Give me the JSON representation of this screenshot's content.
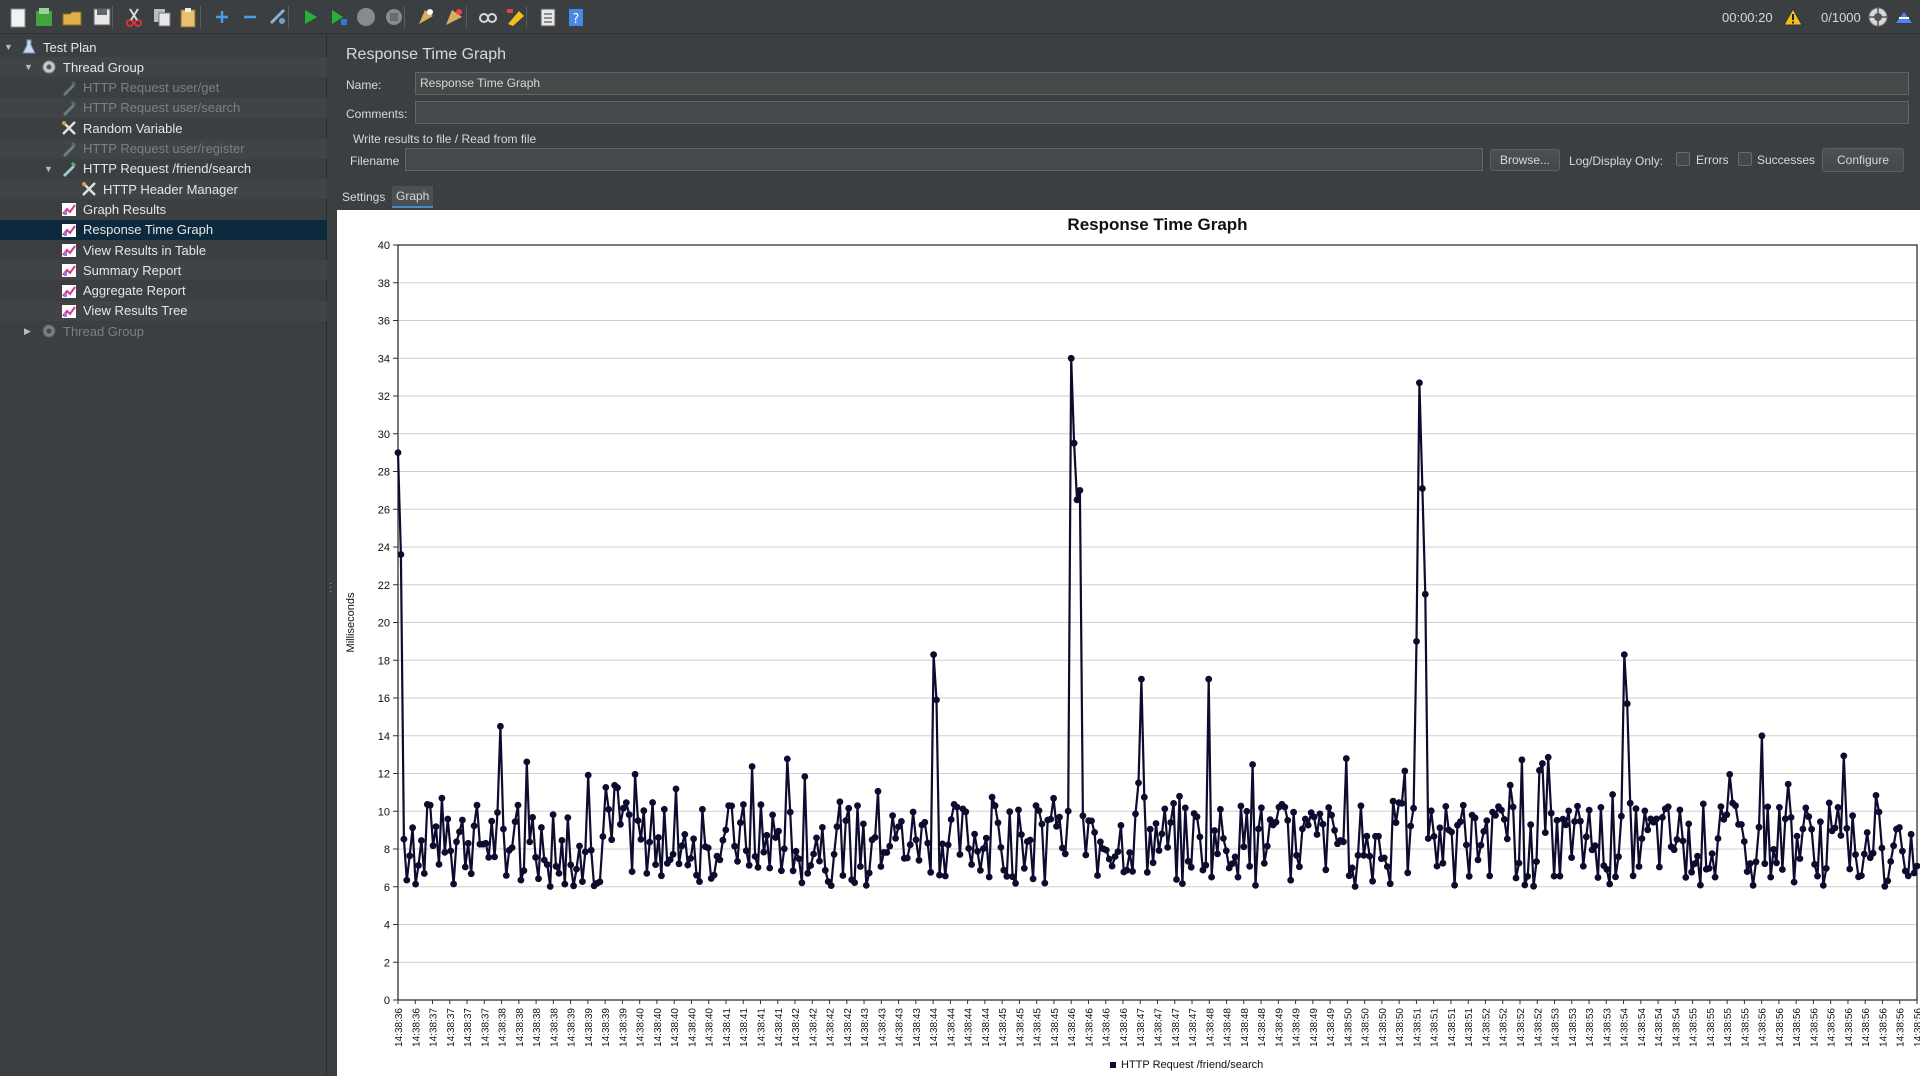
{
  "toolbar": {
    "buttons": [
      {
        "name": "new-icon",
        "color": "#f2f2f2"
      },
      {
        "name": "templates-icon",
        "color": "#3fa53f"
      },
      {
        "name": "open-icon",
        "color": "#e0b04a"
      },
      {
        "name": "save-icon",
        "color": "#e8e8e8"
      },
      {
        "name": "cut-icon",
        "color": "#d8d8d8"
      },
      {
        "name": "copy-icon",
        "color": "#e8e8e8"
      },
      {
        "name": "paste-icon",
        "color": "#e8c070"
      },
      {
        "name": "expand-icon",
        "color": "#4a9be8"
      },
      {
        "name": "collapse-icon",
        "color": "#4a9be8"
      },
      {
        "name": "toggle-icon",
        "color": "#8fb0d0"
      },
      {
        "name": "start-icon",
        "color": "#27b03a"
      },
      {
        "name": "start-no-pause-icon",
        "color": "#27b03a"
      },
      {
        "name": "stop-icon",
        "color": "#8a8a8a"
      },
      {
        "name": "shutdown-icon",
        "color": "#8a8a8a"
      },
      {
        "name": "clear-icon",
        "color": "#d8b060"
      },
      {
        "name": "clear-all-icon",
        "color": "#d8b060"
      },
      {
        "name": "search-icon",
        "color": "#d8d8d8"
      },
      {
        "name": "reset-search-icon",
        "color": "#f0c020"
      },
      {
        "name": "function-helper-icon",
        "color": "#e8e8e8"
      },
      {
        "name": "help-icon",
        "color": "#4a88e8"
      }
    ],
    "elapsed_time": "00:00:20",
    "thread_count": "0/1000"
  },
  "tree": [
    {
      "label": "Test Plan",
      "icon": "test-plan-icon",
      "arrow": "down",
      "indent": 0,
      "state": "normal"
    },
    {
      "label": "Thread Group",
      "icon": "gear-icon",
      "arrow": "down",
      "indent": 1,
      "state": "normal"
    },
    {
      "label": "HTTP Request user/get",
      "icon": "pipette-icon",
      "arrow": "none",
      "indent": 2,
      "state": "disabled"
    },
    {
      "label": "HTTP Request user/search",
      "icon": "pipette-icon",
      "arrow": "none",
      "indent": 2,
      "state": "disabled"
    },
    {
      "label": "Random Variable",
      "icon": "wrench-icon",
      "arrow": "none",
      "indent": 2,
      "state": "normal"
    },
    {
      "label": "HTTP Request user/register",
      "icon": "pipette-icon",
      "arrow": "none",
      "indent": 2,
      "state": "disabled"
    },
    {
      "label": "HTTP Request /friend/search",
      "icon": "pipette-icon",
      "arrow": "down",
      "indent": 2,
      "state": "normal"
    },
    {
      "label": "HTTP Header Manager",
      "icon": "wrench-icon",
      "arrow": "none",
      "indent": 3,
      "state": "normal"
    },
    {
      "label": "Graph Results",
      "icon": "graph-icon",
      "arrow": "none",
      "indent": 2,
      "state": "normal"
    },
    {
      "label": "Response Time Graph",
      "icon": "graph-icon",
      "arrow": "none",
      "indent": 2,
      "state": "selected"
    },
    {
      "label": "View Results in Table",
      "icon": "graph-icon",
      "arrow": "none",
      "indent": 2,
      "state": "normal"
    },
    {
      "label": "Summary Report",
      "icon": "graph-icon",
      "arrow": "none",
      "indent": 2,
      "state": "normal"
    },
    {
      "label": "Aggregate Report",
      "icon": "graph-icon",
      "arrow": "none",
      "indent": 2,
      "state": "normal"
    },
    {
      "label": "View Results Tree",
      "icon": "graph-icon",
      "arrow": "none",
      "indent": 2,
      "state": "normal"
    },
    {
      "label": "Thread Group",
      "icon": "gear-icon",
      "arrow": "right",
      "indent": 1,
      "state": "disabled"
    }
  ],
  "panel": {
    "title": "Response Time Graph",
    "name_label": "Name:",
    "name_value": "Response Time Graph",
    "comments_label": "Comments:",
    "comments_value": "",
    "file_group_title": "Write results to file / Read from file",
    "filename_label": "Filename",
    "filename_value": "",
    "browse_label": "Browse...",
    "log_display_label": "Log/Display Only:",
    "errors_label": "Errors",
    "successes_label": "Successes",
    "configure_label": "Configure",
    "tabs": [
      "Settings",
      "Graph"
    ],
    "active_tab": "Graph"
  },
  "chart_data": {
    "type": "line",
    "title": "Response Time Graph",
    "ylabel": "Milliseconds",
    "xlabel": "",
    "ylim": [
      0,
      40
    ],
    "yticks": [
      0,
      2,
      4,
      6,
      8,
      10,
      12,
      14,
      16,
      18,
      20,
      22,
      24,
      26,
      28,
      30,
      32,
      34,
      36,
      38,
      40
    ],
    "grid": true,
    "legend_placement": "bottom",
    "series": [
      {
        "name": "HTTP Request /friend/search",
        "color": "#0d0b2e",
        "peaks": [
          {
            "x": "14:38:36",
            "y": 29
          },
          {
            "x": "14:38:36",
            "y": 23.6
          },
          {
            "x": "14:38:38",
            "y": 14.5
          },
          {
            "x": "14:38:44",
            "y": 18.3
          },
          {
            "x": "14:38:44",
            "y": 15.9
          },
          {
            "x": "14:38:46",
            "y": 34
          },
          {
            "x": "14:38:46",
            "y": 29.5
          },
          {
            "x": "14:38:46",
            "y": 26.5
          },
          {
            "x": "14:38:46",
            "y": 27
          },
          {
            "x": "14:38:47",
            "y": 17
          },
          {
            "x": "14:38:48",
            "y": 17
          },
          {
            "x": "14:38:51",
            "y": 19
          },
          {
            "x": "14:38:51",
            "y": 32.7
          },
          {
            "x": "14:38:51",
            "y": 27.1
          },
          {
            "x": "14:38:51",
            "y": 21.5
          },
          {
            "x": "14:38:54",
            "y": 18.3
          },
          {
            "x": "14:38:54",
            "y": 15.7
          },
          {
            "x": "14:38:56",
            "y": 14
          }
        ],
        "baseline_range": [
          5,
          13
        ],
        "typical": 8.5
      }
    ],
    "x_tick_labels": [
      "14:38:36",
      "14:38:36",
      "14:38:37",
      "14:38:37",
      "14:38:37",
      "14:38:37",
      "14:38:38",
      "14:38:38",
      "14:38:38",
      "14:38:38",
      "14:38:39",
      "14:38:39",
      "14:38:39",
      "14:38:39",
      "14:38:40",
      "14:38:40",
      "14:38:40",
      "14:38:40",
      "14:38:40",
      "14:38:41",
      "14:38:41",
      "14:38:41",
      "14:38:41",
      "14:38:42",
      "14:38:42",
      "14:38:42",
      "14:38:42",
      "14:38:43",
      "14:38:43",
      "14:38:43",
      "14:38:43",
      "14:38:44",
      "14:38:44",
      "14:38:44",
      "14:38:44",
      "14:38:45",
      "14:38:45",
      "14:38:45",
      "14:38:45",
      "14:38:46",
      "14:38:46",
      "14:38:46",
      "14:38:46",
      "14:38:47",
      "14:38:47",
      "14:38:47",
      "14:38:47",
      "14:38:48",
      "14:38:48",
      "14:38:48",
      "14:38:48",
      "14:38:49",
      "14:38:49",
      "14:38:49",
      "14:38:49",
      "14:38:50",
      "14:38:50",
      "14:38:50",
      "14:38:50",
      "14:38:51",
      "14:38:51",
      "14:38:51",
      "14:38:51",
      "14:38:52",
      "14:38:52",
      "14:38:52",
      "14:38:52",
      "14:38:53",
      "14:38:53",
      "14:38:53",
      "14:38:53",
      "14:38:54",
      "14:38:54",
      "14:38:54",
      "14:38:54",
      "14:38:55",
      "14:38:55",
      "14:38:55",
      "14:38:55",
      "14:38:56",
      "14:38:56",
      "14:38:56",
      "14:38:56",
      "14:38:56",
      "14:38:56",
      "14:38:56",
      "14:38:56",
      "14:38:56",
      "14:38:56"
    ]
  }
}
